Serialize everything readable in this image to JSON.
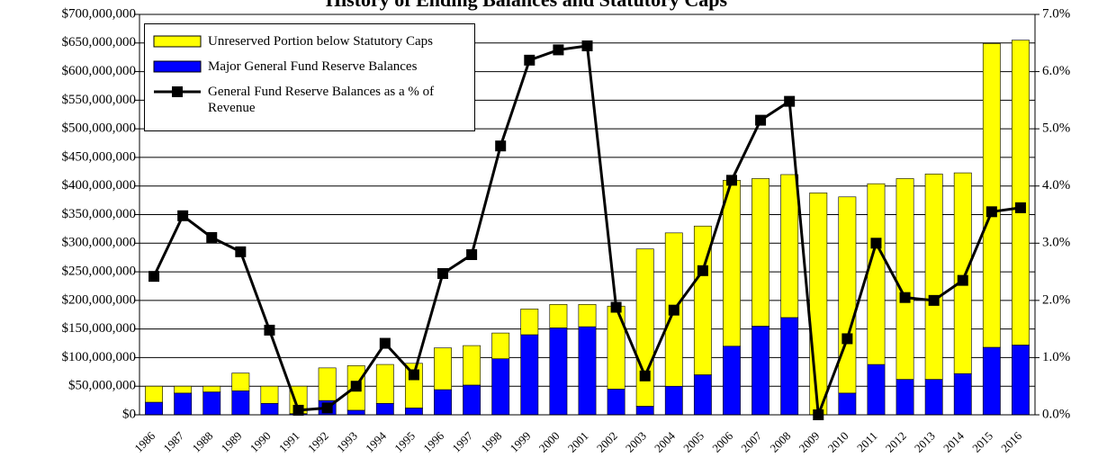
{
  "chart_data": {
    "type": "bar",
    "title": "History of Ending Balances and Statutory Caps",
    "categories": [
      "1986",
      "1987",
      "1988",
      "1989",
      "1990",
      "1991",
      "1992",
      "1993",
      "1994",
      "1995",
      "1996",
      "1997",
      "1998",
      "1999",
      "2000",
      "2001",
      "2002",
      "2003",
      "2004",
      "2005",
      "2006",
      "2007",
      "2008",
      "2009",
      "2010",
      "2011",
      "2012",
      "2013",
      "2014",
      "2015",
      "2016"
    ],
    "stacked": true,
    "series": [
      {
        "name": "Unreserved Portion below Statutory Caps",
        "type": "bar",
        "color": "#ffff00",
        "values": [
          28000000,
          12000000,
          10000000,
          31000000,
          30000000,
          48000000,
          57000000,
          78000000,
          68000000,
          78000000,
          73000000,
          69000000,
          45000000,
          45000000,
          41000000,
          39000000,
          145000000,
          275000000,
          268000000,
          260000000,
          290000000,
          258000000,
          250000000,
          388000000,
          343000000,
          316000000,
          351000000,
          359000000,
          351000000,
          531000000,
          533000000
        ]
      },
      {
        "name": "Major General Fund Reserve Balances",
        "type": "bar",
        "color": "#0000ff",
        "values": [
          22000000,
          38000000,
          40000000,
          42000000,
          20000000,
          2000000,
          25000000,
          8000000,
          20000000,
          12000000,
          44000000,
          52000000,
          98000000,
          140000000,
          152000000,
          154000000,
          45000000,
          15000000,
          50000000,
          70000000,
          120000000,
          155000000,
          170000000,
          0,
          38000000,
          88000000,
          62000000,
          62000000,
          72000000,
          118000000,
          122000000
        ]
      },
      {
        "name": "General Fund Reserve Balances as a % of Revenue",
        "type": "line",
        "axis": "y2",
        "color": "#000000",
        "values": [
          2.42,
          3.48,
          3.1,
          2.85,
          1.48,
          0.08,
          0.12,
          0.5,
          1.25,
          0.7,
          2.47,
          2.8,
          4.7,
          6.2,
          6.38,
          6.45,
          1.88,
          0.68,
          1.83,
          2.52,
          4.1,
          5.15,
          5.48,
          0.0,
          1.33,
          3.0,
          2.05,
          2.0,
          2.35,
          3.55,
          3.62
        ]
      }
    ],
    "ylim": [
      0,
      700000000
    ],
    "yticks": [
      {
        "value": 0,
        "label": "$0"
      },
      {
        "value": 50000000,
        "label": "$50,000,000"
      },
      {
        "value": 100000000,
        "label": "$100,000,000"
      },
      {
        "value": 150000000,
        "label": "$150,000,000"
      },
      {
        "value": 200000000,
        "label": "$200,000,000"
      },
      {
        "value": 250000000,
        "label": "$250,000,000"
      },
      {
        "value": 300000000,
        "label": "$300,000,000"
      },
      {
        "value": 350000000,
        "label": "$350,000,000"
      },
      {
        "value": 400000000,
        "label": "$400,000,000"
      },
      {
        "value": 450000000,
        "label": "$450,000,000"
      },
      {
        "value": 500000000,
        "label": "$500,000,000"
      },
      {
        "value": 550000000,
        "label": "$550,000,000"
      },
      {
        "value": 600000000,
        "label": "$600,000,000"
      },
      {
        "value": 650000000,
        "label": "$650,000,000"
      },
      {
        "value": 700000000,
        "label": "$700,000,000"
      }
    ],
    "y2lim": [
      0,
      7
    ],
    "y2ticks": [
      {
        "value": 0,
        "label": "0.0%"
      },
      {
        "value": 1,
        "label": "1.0%"
      },
      {
        "value": 2,
        "label": "2.0%"
      },
      {
        "value": 3,
        "label": "3.0%"
      },
      {
        "value": 4,
        "label": "4.0%"
      },
      {
        "value": 5,
        "label": "5.0%"
      },
      {
        "value": 6,
        "label": "6.0%"
      },
      {
        "value": 7,
        "label": "7.0%"
      }
    ],
    "grid": true,
    "legend": "upper-left"
  }
}
